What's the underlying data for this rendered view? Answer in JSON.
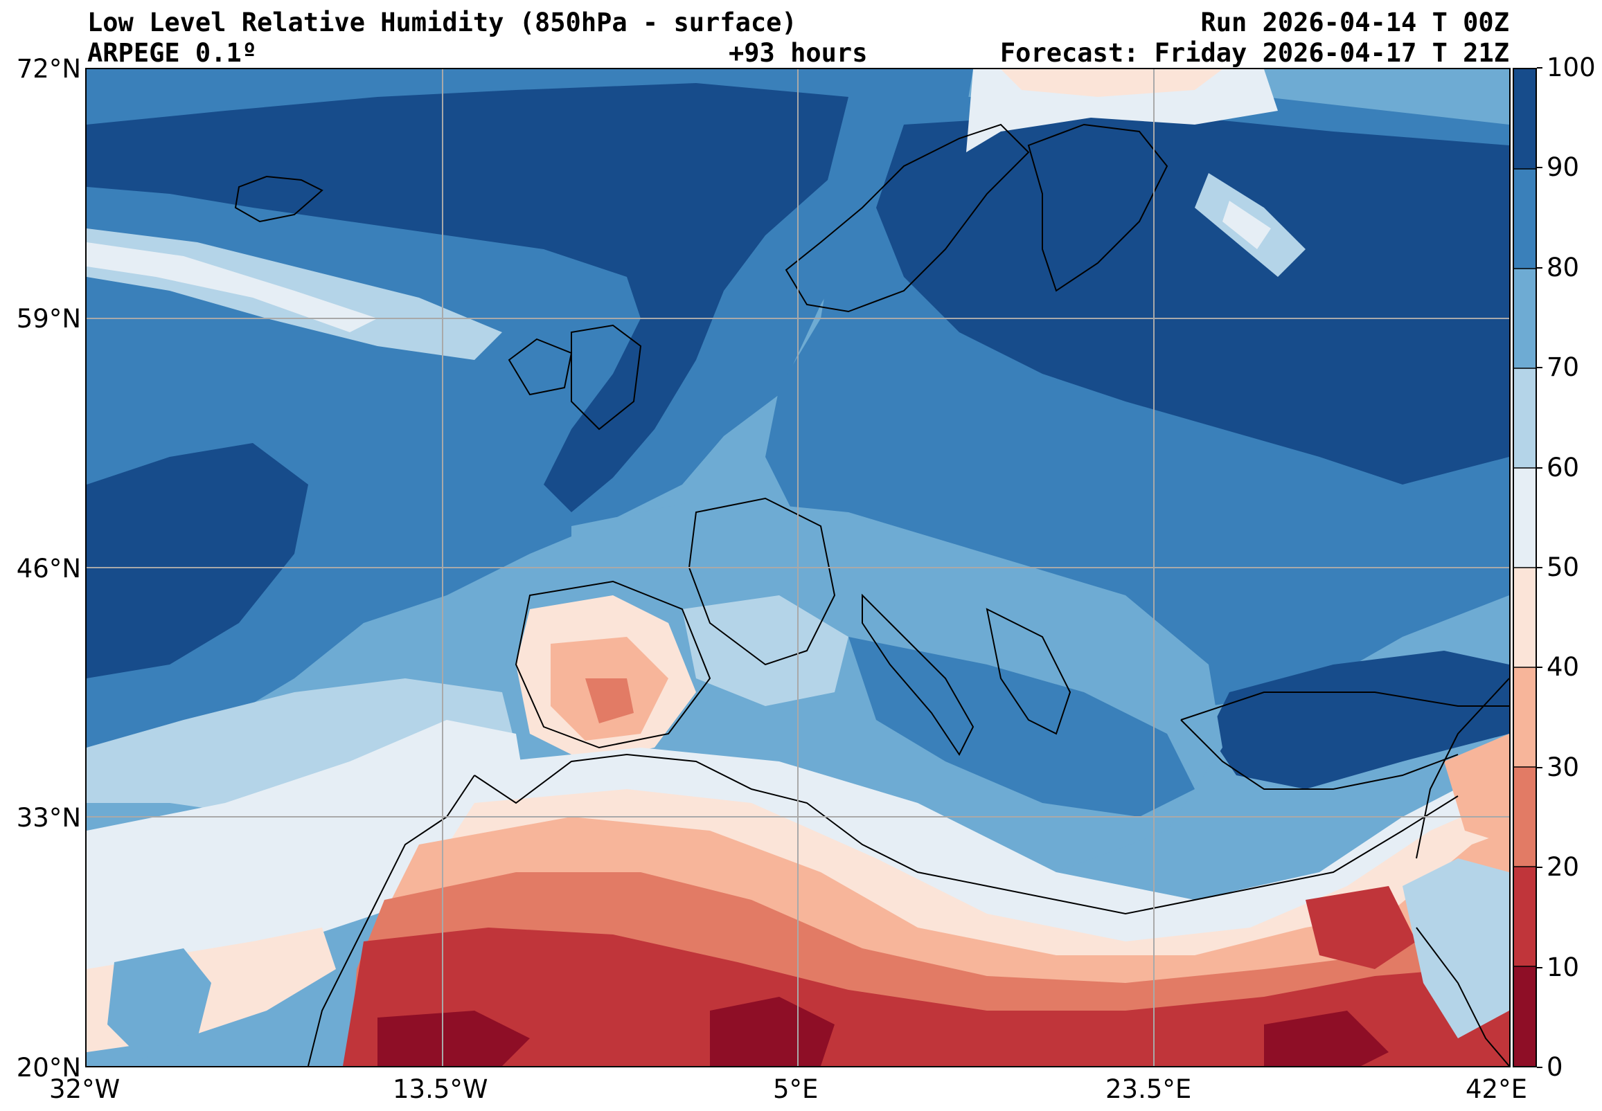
{
  "header": {
    "title": "Low Level Relative Humidity (850hPa - surface)",
    "model": "ARPEGE 0.1º",
    "lead_time": "+93 hours",
    "run": "Run 2026-04-14 T 00Z",
    "forecast": "Forecast: Friday 2026-04-17 T 21Z"
  },
  "map": {
    "lat_ticks": [
      "72°N",
      "59°N",
      "46°N",
      "33°N",
      "20°N"
    ],
    "lon_ticks": [
      "32°W",
      "13.5°W",
      "5°E",
      "23.5°E",
      "42°E"
    ],
    "extent": {
      "lon_min": -32,
      "lon_max": 42,
      "lat_min": 20,
      "lat_max": 72
    },
    "grid": true
  },
  "colorbar": {
    "ticks": [
      "0",
      "10",
      "20",
      "30",
      "40",
      "50",
      "60",
      "70",
      "80",
      "90",
      "100"
    ],
    "levels": [
      0,
      10,
      20,
      30,
      40,
      50,
      60,
      70,
      80,
      90,
      100
    ],
    "colors": [
      "#8e0e26",
      "#c0353a",
      "#e27b65",
      "#f7b59a",
      "#fbe4d8",
      "#e6eef5",
      "#b4d4e8",
      "#6eabd3",
      "#3a80ba",
      "#174c8b"
    ]
  }
}
